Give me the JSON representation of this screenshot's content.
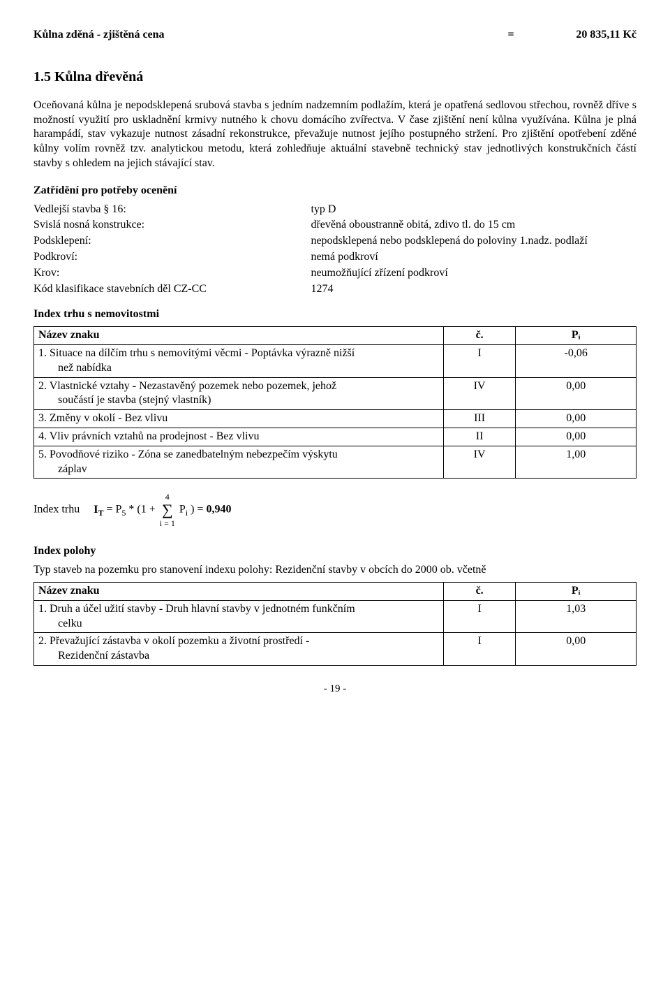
{
  "price_line": {
    "label": "Kůlna zděná - zjištěná cena",
    "eq": "=",
    "value": "20 835,11 Kč"
  },
  "section": {
    "heading": "1.5 Kůlna dřevěná"
  },
  "para1": "Oceňovaná kůlna je nepodsklepená srubová stavba s jedním nadzemním podlažím, která je opatřená sedlovou střechou, rovněž dříve s možností využití pro uskladnění krmivy nutného k chovu domácího zvířectva. V čase zjištění není kůlna využívána. Kůlna je plná harampádí, stav vykazuje nutnost zásadní rekonstrukce, převažuje nutnost jejího postupného stržení. Pro zjištění opotřebení zděné kůlny volím rovněž tzv. analytickou metodu, která zohledňuje aktuální stavebně technický stav jednotlivých konstrukčních částí stavby s ohledem na jejich stávající stav.",
  "zatrideni": {
    "heading": "Zatřídění pro potřeby ocenění",
    "rows": [
      {
        "k": "Vedlejší stavba § 16:",
        "v": "typ D"
      },
      {
        "k": "Svislá nosná konstrukce:",
        "v": "dřevěná oboustranně obitá, zdivo tl. do 15 cm"
      },
      {
        "k": "Podsklepení:",
        "v": "nepodsklepená nebo podsklepená do poloviny 1.nadz. podlaží"
      },
      {
        "k": "Podkroví:",
        "v": "nemá podkroví"
      },
      {
        "k": "Krov:",
        "v": "neumožňující zřízení podkroví"
      },
      {
        "k": "Kód klasifikace stavebních děl CZ-CC",
        "v": " 1274"
      }
    ]
  },
  "index_trhu": {
    "heading": "Index trhu s nemovitostmi",
    "header": {
      "name": "Název znaku",
      "c": "č.",
      "pi": "Pᵢ"
    },
    "rows": [
      {
        "name": "1. Situace na dílčím trhu s nemovitými věcmi - Poptávka výrazně nižší",
        "sub": "než nabídka",
        "c": "I",
        "pi": "-0,06"
      },
      {
        "name": "2. Vlastnické vztahy - Nezastavěný pozemek nebo pozemek, jehož",
        "sub": "součástí je stavba (stejný vlastník)",
        "c": "IV",
        "pi": "0,00"
      },
      {
        "name": "3. Změny v okolí - Bez vlivu",
        "sub": "",
        "c": "III",
        "pi": "0,00"
      },
      {
        "name": "4. Vliv právních vztahů na prodejnost - Bez vlivu",
        "sub": "",
        "c": "II",
        "pi": "0,00"
      },
      {
        "name": "5. Povodňové riziko - Zóna se zanedbatelným nebezpečím výskytu",
        "sub": "záplav",
        "c": "IV",
        "pi": "1,00"
      }
    ]
  },
  "formula": {
    "prefix": "Index trhu",
    "lhs1": "I",
    "lhs_sub": "T",
    "eq": " = P",
    "p5sub": "5",
    "mid": " * (1 + ",
    "sum_top": "4",
    "sum_bot": "i = 1",
    "pi": " P",
    "pi_sub": "i",
    "close": ") = ",
    "result": "0,940"
  },
  "index_polohy": {
    "heading": "Index polohy",
    "para": "Typ staveb na pozemku pro stanovení indexu polohy: Rezidenční stavby v obcích do 2000 ob. včetně",
    "header": {
      "name": "Název znaku",
      "c": "č.",
      "pi": "Pᵢ"
    },
    "rows": [
      {
        "name": "1. Druh a účel užití stavby - Druh hlavní stavby v jednotném funkčním",
        "sub": "celku",
        "c": "I",
        "pi": "1,03"
      },
      {
        "name": "2. Převažující zástavba v okolí pozemku a životní prostředí -",
        "sub": "Rezidenční zástavba",
        "c": "I",
        "pi": "0,00"
      }
    ]
  },
  "page_num": "- 19 -"
}
